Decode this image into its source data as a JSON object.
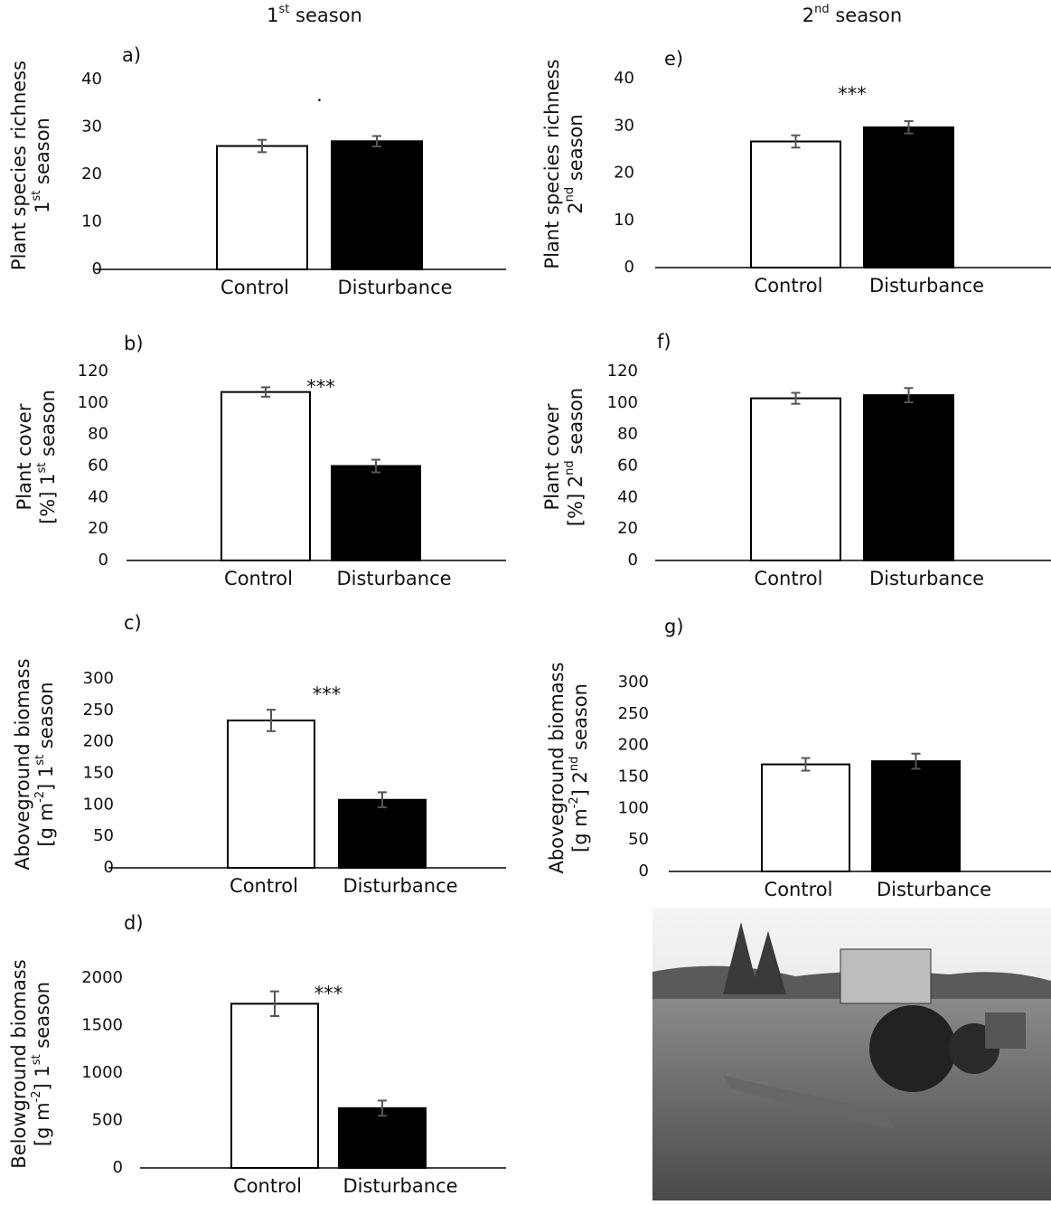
{
  "column_titles": [
    [
      "1",
      "st",
      " season"
    ],
    [
      "2",
      "nd",
      " season"
    ]
  ],
  "chart_data": [
    {
      "type": "bar",
      "panel": "a)",
      "ylabel": [
        [
          "Plant species richness"
        ],
        [
          "1",
          "st",
          " season"
        ]
      ],
      "annotation": ".",
      "categories": [
        "Control",
        "Disturbance"
      ],
      "values": [
        26,
        27
      ],
      "errors": [
        1.3,
        1.1
      ],
      "colors": [
        "#ffffff",
        "#000000"
      ],
      "ylim": [
        0,
        40
      ],
      "yticks": [
        0,
        10,
        20,
        30,
        40
      ]
    },
    {
      "type": "bar",
      "panel": "b)",
      "ylabel": [
        [
          "Plant cover"
        ],
        [
          "[%] 1",
          "st",
          " season"
        ]
      ],
      "annotation": "***",
      "categories": [
        "Control",
        "Disturbance"
      ],
      "values": [
        107,
        60
      ],
      "errors": [
        3,
        4
      ],
      "colors": [
        "#ffffff",
        "#000000"
      ],
      "ylim": [
        0,
        120
      ],
      "yticks": [
        0,
        20,
        40,
        60,
        80,
        100,
        120
      ]
    },
    {
      "type": "bar",
      "panel": "c)",
      "ylabel": [
        [
          "Aboveground biomass"
        ],
        [
          "[g m",
          "-2",
          "] 1",
          "st",
          " season"
        ]
      ],
      "annotation": "***",
      "categories": [
        "Control",
        "Disturbance"
      ],
      "values": [
        234,
        108
      ],
      "errors": [
        17,
        12
      ],
      "colors": [
        "#ffffff",
        "#000000"
      ],
      "ylim": [
        0,
        300
      ],
      "yticks": [
        0,
        50,
        100,
        150,
        200,
        250,
        300
      ]
    },
    {
      "type": "bar",
      "panel": "d)",
      "ylabel": [
        [
          "Belowground biomass"
        ],
        [
          "[g m",
          "-2",
          "] 1",
          "st",
          " season"
        ]
      ],
      "annotation": "***",
      "categories": [
        "Control",
        "Disturbance"
      ],
      "values": [
        1730,
        630
      ],
      "errors": [
        130,
        80
      ],
      "colors": [
        "#ffffff",
        "#000000"
      ],
      "ylim": [
        0,
        2000
      ],
      "yticks": [
        0,
        500,
        1000,
        1500,
        2000
      ]
    },
    {
      "type": "bar",
      "panel": "e)",
      "ylabel": [
        [
          "Plant species richness"
        ],
        [
          "2",
          "nd",
          " season"
        ]
      ],
      "annotation": "***",
      "categories": [
        "Control",
        "Disturbance"
      ],
      "values": [
        26.7,
        29.7
      ],
      "errors": [
        1.3,
        1.3
      ],
      "colors": [
        "#ffffff",
        "#000000"
      ],
      "ylim": [
        0,
        40
      ],
      "yticks": [
        0,
        10,
        20,
        30,
        40
      ]
    },
    {
      "type": "bar",
      "panel": "f)",
      "ylabel": [
        [
          "Plant cover"
        ],
        [
          "[%] 2",
          "nd",
          " season"
        ]
      ],
      "categories": [
        "Control",
        "Disturbance"
      ],
      "values": [
        103,
        105
      ],
      "errors": [
        3.5,
        4.5
      ],
      "colors": [
        "#ffffff",
        "#000000"
      ],
      "ylim": [
        0,
        120
      ],
      "yticks": [
        0,
        20,
        40,
        60,
        80,
        100,
        120
      ]
    },
    {
      "type": "bar",
      "panel": "g)",
      "ylabel": [
        [
          "Aboveground biomass"
        ],
        [
          "[g m",
          "-2",
          "] 2",
          "nd",
          " season"
        ]
      ],
      "categories": [
        "Control",
        "Disturbance"
      ],
      "values": [
        170,
        175
      ],
      "errors": [
        10,
        12
      ],
      "colors": [
        "#ffffff",
        "#000000"
      ],
      "ylim": [
        0,
        300
      ],
      "yticks": [
        0,
        50,
        100,
        150,
        200,
        250,
        300
      ]
    }
  ]
}
